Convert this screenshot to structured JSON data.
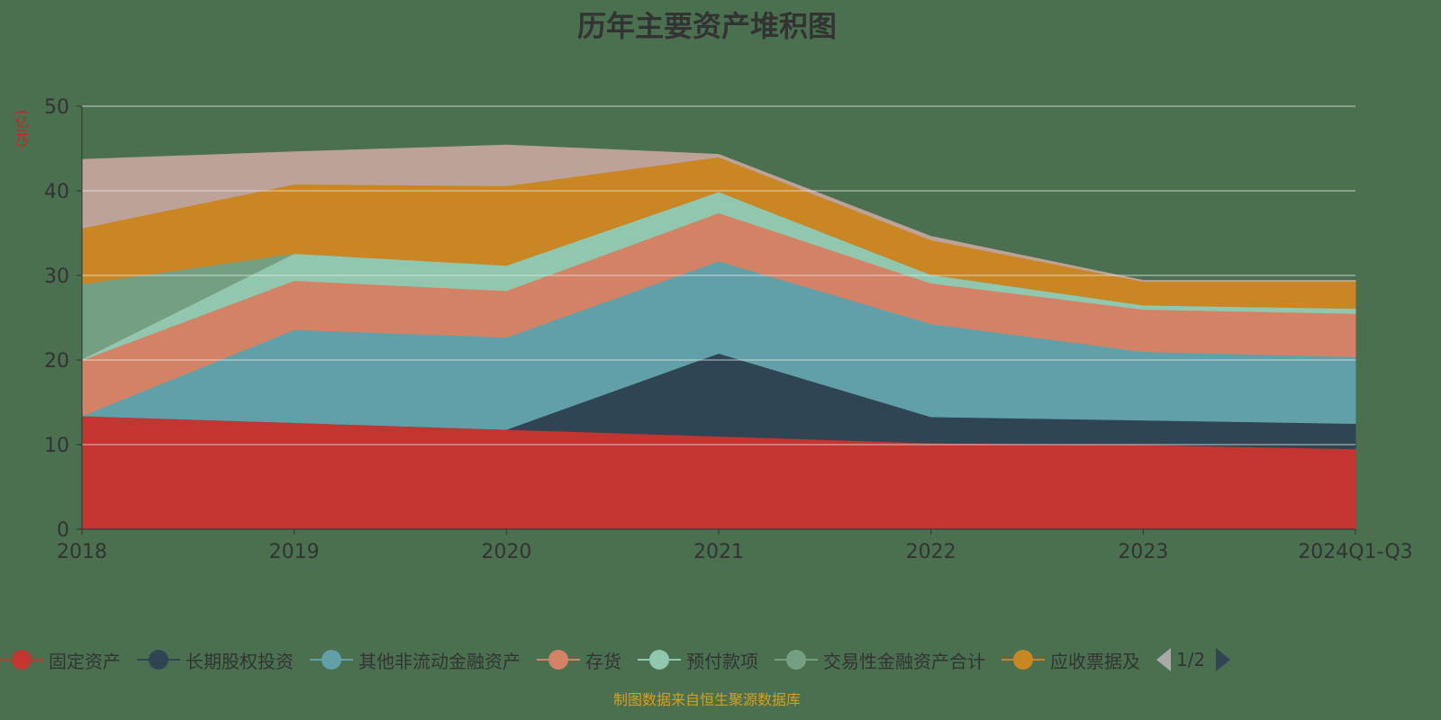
{
  "chart_data": {
    "type": "area",
    "stacked": true,
    "title": "历年主要资产堆积图",
    "ylabel": "(亿元)",
    "xlabel": "",
    "ylim": [
      0,
      50
    ],
    "yticks": [
      0,
      10,
      20,
      30,
      40,
      50
    ],
    "grid": true,
    "legend_placement": "bottom",
    "categories": [
      "2018",
      "2019",
      "2020",
      "2021",
      "2022",
      "2023",
      "2024Q1-Q3"
    ],
    "series": [
      {
        "name": "固定资产",
        "color": "#c23531",
        "values": [
          13.4,
          12.6,
          11.8,
          11.0,
          10.2,
          10.0,
          9.5
        ]
      },
      {
        "name": "长期股权投资",
        "color": "#2f4554",
        "values": [
          0,
          0,
          0,
          9.8,
          3.1,
          2.9,
          3.0
        ]
      },
      {
        "name": "其他非流动金融资产",
        "color": "#61a0a8",
        "values": [
          0,
          11.0,
          10.9,
          10.9,
          11.0,
          8.1,
          7.9
        ]
      },
      {
        "name": "存货",
        "color": "#d48265",
        "values": [
          6.6,
          5.8,
          5.5,
          5.7,
          4.8,
          5.0,
          5.1
        ]
      },
      {
        "name": "预付款项",
        "color": "#91c7ae",
        "values": [
          0.1,
          3.2,
          3.0,
          2.5,
          1.0,
          0.5,
          0.6
        ]
      },
      {
        "name": "交易性金融资产合计",
        "color": "#749f83",
        "values": [
          8.9,
          0,
          0,
          0,
          0,
          0,
          0
        ]
      },
      {
        "name": "应收票据及",
        "color": "#ca8622",
        "values": [
          6.6,
          8.2,
          9.4,
          4.1,
          4.1,
          2.8,
          3.2
        ]
      },
      {
        "color": "#bda29a",
        "values": [
          8.1,
          3.8,
          4.8,
          0.3,
          0.4,
          0.1,
          0.1
        ]
      }
    ]
  },
  "legend": {
    "page": "1/2"
  },
  "footer": "制图数据来自恒生聚源数据库"
}
